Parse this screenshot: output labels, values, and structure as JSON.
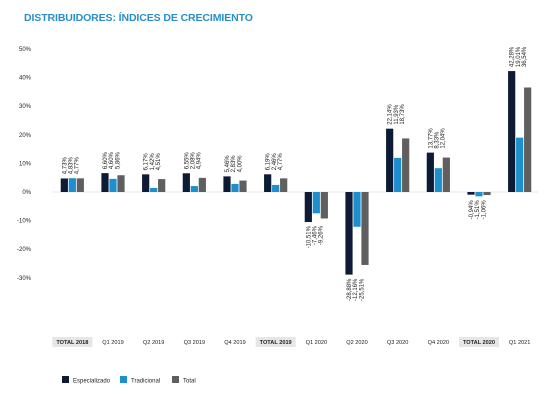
{
  "title": "DISTRIBUIDORES: ÍNDICES DE CRECIMIENTO",
  "colors": {
    "Especializado": "#0d1b34",
    "Tradicional": "#1d8fce",
    "Total": "#5f5f5f",
    "total_label_bg": "#e6e6e6"
  },
  "chart_data": {
    "type": "bar",
    "title": "DISTRIBUIDORES: ÍNDICES DE CRECIMIENTO",
    "xlabel": "",
    "ylabel": "",
    "ylim": [
      -40,
      50
    ],
    "yticks": [
      "50%",
      "40%",
      "30%",
      "20%",
      "10%",
      "0%",
      "-10%",
      "-20%",
      "-30%"
    ],
    "grid": false,
    "legend": "bottom-left",
    "categories": [
      "TOTAL 2018",
      "Q1 2019",
      "Q2 2019",
      "Q3 2019",
      "Q4 2019",
      "TOTAL 2019",
      "Q1 2020",
      "Q2 2020",
      "Q3 2020",
      "Q4 2020",
      "TOTAL 2020",
      "Q1 2021"
    ],
    "highlighted_categories": [
      "TOTAL 2018",
      "TOTAL 2019",
      "TOTAL 2020"
    ],
    "series": [
      {
        "name": "Especializado",
        "values": [
          4.73,
          6.6,
          6.17,
          6.55,
          5.46,
          6.19,
          -10.51,
          -28.88,
          22.14,
          13.77,
          -0.94,
          42.28
        ],
        "labels": [
          "4,73%",
          "6,60%",
          "6,17%",
          "6,55%",
          "5,46%",
          "6,19%",
          "-10,51%",
          "-28,88%",
          "22,14%",
          "13,77%",
          "-0,94%",
          "42,28%"
        ]
      },
      {
        "name": "Tradicional",
        "values": [
          4.83,
          4.6,
          1.42,
          2.08,
          2.83,
          2.46,
          -7.46,
          -12.16,
          11.93,
          8.33,
          -1.51,
          19.01
        ],
        "labels": [
          "4,83%",
          "4,60%",
          "1,42%",
          "2,08%",
          "2,83%",
          "2,46%",
          "-7,46%",
          "-12,16%",
          "11,93%",
          "8,33%",
          "-1,51%",
          "19,01%"
        ]
      },
      {
        "name": "Total",
        "values": [
          4.77,
          5.86,
          4.51,
          4.94,
          4.0,
          4.77,
          -9.26,
          -25.51,
          18.73,
          12.04,
          -1.06,
          36.54
        ],
        "labels": [
          "4,77%",
          "5,86%",
          "4,51%",
          "4,94%",
          "4,00%",
          "4,77%",
          "-9,26%",
          "-25,51%",
          "18,73%",
          "12,04%",
          "-1,06%",
          "36,54%"
        ]
      }
    ]
  }
}
